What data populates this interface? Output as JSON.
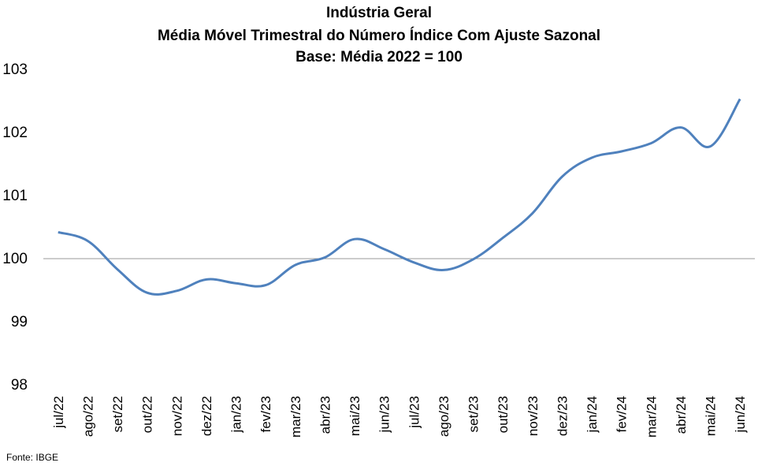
{
  "chart_data": {
    "type": "line",
    "title": "Indústria Geral",
    "subtitle": "Média Móvel Trimestral do Número Índice Com Ajuste Sazonal",
    "subtitle2": "Base: Média 2022 = 100",
    "xlabel": "",
    "ylabel": "",
    "ylim": [
      98,
      103
    ],
    "yticks": [
      "98",
      "99",
      "100",
      "101",
      "102",
      "103"
    ],
    "reference_line": 100,
    "categories": [
      "jul/22",
      "ago/22",
      "set/22",
      "out/22",
      "nov/22",
      "dez/22",
      "jan/23",
      "fev/23",
      "mar/23",
      "abr/23",
      "mai/23",
      "jun/23",
      "jul/23",
      "ago/23",
      "set/23",
      "out/23",
      "nov/23",
      "dez/23",
      "jan/24",
      "fev/24",
      "mar/24",
      "abr/24",
      "mai/24",
      "jun/24"
    ],
    "series": [
      {
        "color": "#4F81BD",
        "values": [
          100.42,
          100.28,
          99.83,
          99.46,
          99.49,
          99.67,
          99.61,
          99.58,
          99.9,
          100.02,
          100.31,
          100.15,
          99.94,
          99.82,
          99.99,
          100.33,
          100.72,
          101.3,
          101.6,
          101.7,
          101.83,
          102.08,
          101.78,
          102.53
        ]
      }
    ],
    "grid": false,
    "legend": "none"
  },
  "source": "Fonte: IBGE"
}
